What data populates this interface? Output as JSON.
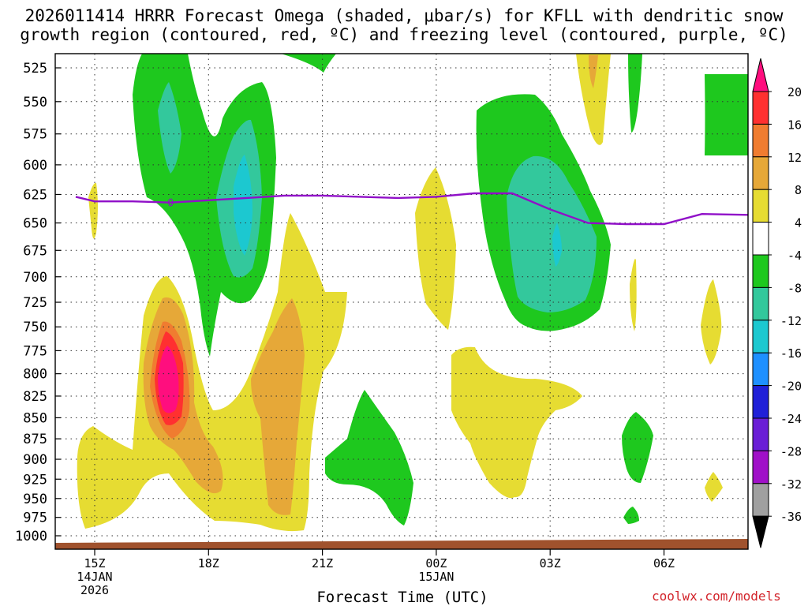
{
  "chart_data": {
    "type": "contour",
    "title_line1": "2026011414 HRRR Forecast Omega (shaded, μbar/s) for KFLL with dendritic snow",
    "title_line2": "growth region (contoured, red, ºC) and freezing level (contoured, purple, ºC)",
    "xlabel": "Forecast Time (UTC)",
    "y_ticks": [
      525,
      550,
      575,
      600,
      625,
      650,
      675,
      700,
      725,
      750,
      775,
      800,
      825,
      850,
      875,
      900,
      925,
      950,
      975,
      1000
    ],
    "x_ticks": [
      {
        "label": "15Z",
        "sub1": "14JAN",
        "sub2": "2026"
      },
      {
        "label": "18Z",
        "sub1": "",
        "sub2": ""
      },
      {
        "label": "21Z",
        "sub1": "",
        "sub2": ""
      },
      {
        "label": "00Z",
        "sub1": "15JAN",
        "sub2": ""
      },
      {
        "label": "03Z",
        "sub1": "",
        "sub2": ""
      },
      {
        "label": "06Z",
        "sub1": "",
        "sub2": ""
      }
    ],
    "colorbar_ticks": [
      "20",
      "16",
      "12",
      "8",
      "4",
      "-4",
      "-8",
      "-12",
      "-16",
      "-20",
      "-24",
      "-28",
      "-32",
      "-36"
    ],
    "colorbar_colors": [
      "#ff0e7e",
      "#ff3030",
      "#f07c30",
      "#e6a838",
      "#e6dc32",
      "#ffffff",
      "#1ec81e",
      "#33c89c",
      "#1cc8d0",
      "#1e90ff",
      "#2020d8",
      "#6a1ed6",
      "#a010c8",
      "#a0a0a0"
    ],
    "freezing_level_marker": "0",
    "series": [
      {
        "name": "freezing level (0C, hPa)",
        "hours": [
          14.5,
          15,
          16,
          17,
          18,
          19,
          20,
          21,
          22,
          23,
          24,
          25,
          26,
          27,
          28,
          29,
          30,
          31,
          32.5
        ],
        "pressure": [
          627,
          631,
          631,
          632,
          630,
          628,
          626,
          626,
          627,
          628,
          627,
          624,
          624,
          638,
          650,
          651,
          651,
          642,
          643
        ]
      }
    ]
  },
  "credit": "coolwx.com/models"
}
